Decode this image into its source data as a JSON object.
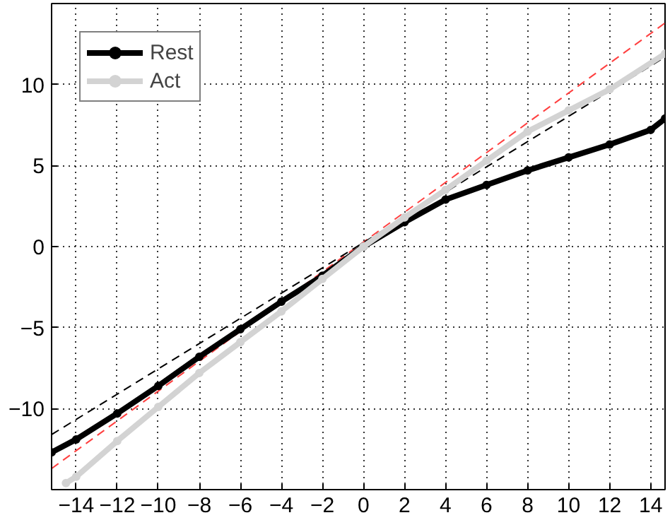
{
  "chart_data": {
    "type": "line",
    "xlim": [
      -15.2,
      14.7
    ],
    "ylim": [
      -15,
      15
    ],
    "xticks": [
      {
        "value": -14,
        "label": "−14"
      },
      {
        "value": -12,
        "label": "−12"
      },
      {
        "value": -10,
        "label": "−10"
      },
      {
        "value": -8,
        "label": "−8"
      },
      {
        "value": -6,
        "label": "−6"
      },
      {
        "value": -4,
        "label": "−4"
      },
      {
        "value": -2,
        "label": "−2"
      },
      0,
      2,
      4,
      6,
      8,
      10,
      12,
      14
    ],
    "yticks": [
      {
        "value": -10,
        "label": "−10"
      },
      {
        "value": -5,
        "label": "−5"
      },
      0,
      5,
      10
    ],
    "grid": true,
    "legend": "top left",
    "marker": "circle",
    "line_style": "solid",
    "series": [
      {
        "color": "#ff4040",
        "x": [
          -15.2,
          14.7
        ],
        "values": [
          -13.7,
          13.8
        ],
        "marker": "none",
        "line_style": "dashed"
      },
      {
        "color": "#000000",
        "x": [
          -15.2,
          14.7
        ],
        "values": [
          -11.6,
          11.7
        ],
        "marker": "none",
        "line_style": "dashed"
      },
      {
        "name": "Rest",
        "color": "#000000",
        "x": [
          -15.2,
          -14,
          -12,
          -10,
          -8,
          -6,
          -4,
          -2,
          0,
          2,
          4,
          6,
          8,
          10,
          12,
          14,
          14.7
        ],
        "values": [
          -12.7,
          -11.9,
          -10.3,
          -8.6,
          -6.8,
          -5.1,
          -3.4,
          -1.8,
          0,
          1.5,
          2.9,
          3.8,
          4.7,
          5.5,
          6.3,
          7.2,
          7.9
        ]
      },
      {
        "name": "Act",
        "color": "#d3d3d3",
        "x": [
          -14.5,
          -14,
          -12,
          -10,
          -8,
          -6,
          -4,
          -2,
          0,
          2,
          4,
          6,
          8,
          10,
          12,
          14.7
        ],
        "values": [
          -14.6,
          -14.2,
          -12,
          -9.9,
          -7.8,
          -5.9,
          -4,
          -2,
          0,
          1.8,
          3.5,
          5.3,
          7.1,
          8.4,
          9.7,
          11.9
        ]
      }
    ]
  }
}
